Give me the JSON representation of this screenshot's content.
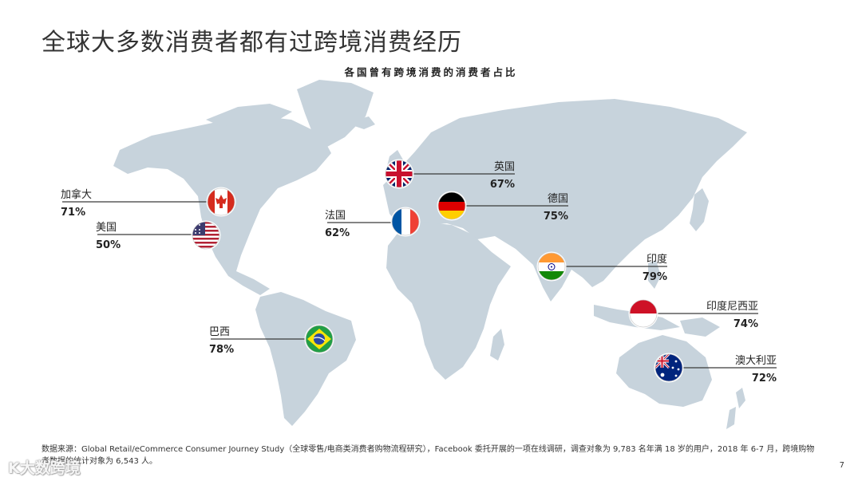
{
  "page": {
    "title": "全球大多数消费者都有过跨境消费经历",
    "page_number": "7",
    "watermark": "K大数跨境"
  },
  "source_note": "数据来源：Global Retail/eCommerce Consumer Journey Study（全球零售/电商类消费者购物流程研究），Facebook 委托开展的一项在线调研，调查对象为 9,783 名年满 18 岁的用户，2018 年 6-7 月，跨境购物者数据的统计对象为 6,543 人。",
  "colors": {
    "land": "#c7d3dc",
    "leader": "#3a3a3a",
    "text": "#222222"
  },
  "chart_data": {
    "type": "map",
    "title": "各国曾有跨境消费的消费者占比",
    "unit": "%",
    "data": [
      {
        "country": "加拿大",
        "value": 71,
        "label": "71%",
        "flag": "canada-flag"
      },
      {
        "country": "美国",
        "value": 50,
        "label": "50%",
        "flag": "usa-flag"
      },
      {
        "country": "巴西",
        "value": 78,
        "label": "78%",
        "flag": "brazil-flag"
      },
      {
        "country": "法国",
        "value": 62,
        "label": "62%",
        "flag": "france-flag"
      },
      {
        "country": "英国",
        "value": 67,
        "label": "67%",
        "flag": "uk-flag"
      },
      {
        "country": "德国",
        "value": 75,
        "label": "75%",
        "flag": "germany-flag"
      },
      {
        "country": "印度",
        "value": 79,
        "label": "79%",
        "flag": "india-flag"
      },
      {
        "country": "印度尼西亚",
        "value": 74,
        "label": "74%",
        "flag": "indonesia-flag"
      },
      {
        "country": "澳大利亚",
        "value": 72,
        "label": "72%",
        "flag": "australia-flag"
      }
    ]
  }
}
